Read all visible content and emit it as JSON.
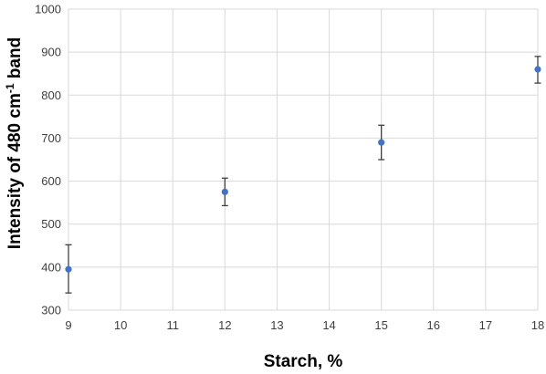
{
  "chart_data": {
    "type": "scatter",
    "title": "",
    "xlabel": "Starch, %",
    "ylabel": "Intensity of 480 cm",
    "ylabel_sup": "-1",
    "ylabel_suffix": " band",
    "xlim": [
      9,
      18
    ],
    "ylim": [
      300,
      1000
    ],
    "x_ticks": [
      9,
      10,
      11,
      12,
      13,
      14,
      15,
      16,
      17,
      18
    ],
    "y_ticks": [
      300,
      400,
      500,
      600,
      700,
      800,
      900,
      1000
    ],
    "grid": true,
    "legend": "none",
    "marker_color": "#4472c4",
    "series": [
      {
        "x": [
          9,
          12,
          15,
          18
        ],
        "y": [
          395,
          575,
          690,
          860
        ],
        "error_low": [
          340,
          543,
          650,
          828
        ],
        "error_high": [
          452,
          607,
          730,
          890
        ]
      }
    ]
  }
}
